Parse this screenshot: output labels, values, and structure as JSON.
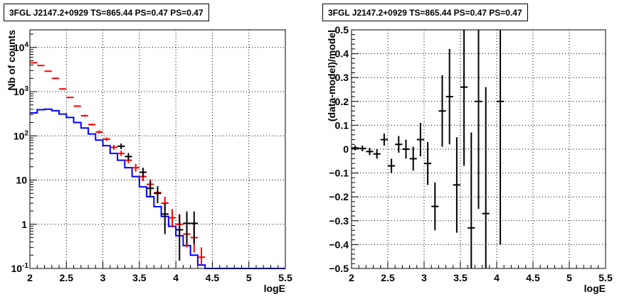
{
  "chart_data": [
    {
      "type": "histogram",
      "title": "3FGL J2147.2+0929 TS=865.44 PS=0.47 PS=0.47",
      "xlabel": "logE",
      "ylabel": "Nb of counts",
      "xlim": [
        2,
        5.5
      ],
      "ylim": [
        0.1,
        25000
      ],
      "yscale": "log",
      "grid": true,
      "xticks": [
        "2",
        "2.5",
        "3",
        "3.5",
        "4",
        "4.5",
        "5",
        "5.5"
      ],
      "yticks": [
        {
          "v": 0.1,
          "label": "10",
          "exp": "-1"
        },
        {
          "v": 1,
          "label": "1",
          "exp": ""
        },
        {
          "v": 10,
          "label": "10",
          "exp": ""
        },
        {
          "v": 100,
          "label": "10",
          "exp": "2"
        },
        {
          "v": 1000,
          "label": "10",
          "exp": "3"
        },
        {
          "v": 10000,
          "label": "10",
          "exp": "4"
        }
      ],
      "bin_edges": [
        2.0,
        2.1,
        2.2,
        2.3,
        2.4,
        2.5,
        2.6,
        2.7,
        2.8,
        2.9,
        3.0,
        3.1,
        3.2,
        3.3,
        3.4,
        3.5,
        3.6,
        3.7,
        3.8,
        3.9,
        4.0,
        4.1,
        4.2,
        4.3,
        4.4,
        4.5,
        4.6,
        4.7,
        4.8,
        4.9,
        5.0,
        5.1,
        5.2,
        5.3,
        5.4,
        5.5
      ],
      "series": [
        {
          "kind": "step",
          "color": "#0000ff",
          "values": [
            330,
            390,
            400,
            370,
            310,
            260,
            200,
            150,
            110,
            80,
            60,
            40,
            28,
            19,
            12,
            7,
            4.2,
            2.5,
            1.5,
            0.9,
            0.55,
            0.33,
            0.2,
            0.12,
            0.1,
            0.1,
            0.1,
            0.1,
            0.1,
            0.1,
            0.1,
            0.1,
            0.1,
            0.1,
            0.1
          ]
        },
        {
          "kind": "points",
          "color": "#ff0000",
          "x": [
            2.05,
            2.15,
            2.25,
            2.35,
            2.45,
            2.55,
            2.65,
            2.75,
            2.85,
            2.95,
            3.05,
            3.15,
            3.25,
            3.35,
            3.45,
            3.55,
            3.65,
            3.75,
            3.85,
            3.95,
            4.05,
            4.15,
            4.25,
            4.35
          ],
          "y": [
            4500,
            3900,
            2900,
            2000,
            1150,
            740,
            470,
            285,
            180,
            122,
            84,
            55,
            40,
            28,
            19,
            12,
            8,
            5.2,
            3,
            1.4,
            1.0,
            0.6,
            0.5,
            0.18
          ],
          "yerr_low": [
            4400,
            3800,
            2820,
            1940,
            1110,
            715,
            455,
            272,
            170,
            112,
            77,
            49,
            35,
            24,
            15.5,
            9.5,
            6.2,
            3.8,
            2.1,
            0.85,
            0.55,
            0.3,
            0.23,
            0.12
          ],
          "yerr_high": [
            4600,
            4000,
            2980,
            2060,
            1190,
            765,
            490,
            300,
            190,
            133,
            92,
            62,
            46,
            33,
            23,
            15,
            10.5,
            7,
            4.2,
            2.2,
            1.7,
            1.1,
            1.0,
            0.3
          ]
        },
        {
          "kind": "points",
          "color": "#000000",
          "x": [
            3.25,
            3.35,
            3.55,
            3.65,
            3.75,
            3.85,
            4.05,
            4.15,
            4.25
          ],
          "y": [
            58,
            34,
            15,
            6.5,
            5.0,
            1.7,
            0.75,
            1.05,
            1.05
          ],
          "yerr_low": [
            50,
            28,
            11.5,
            4.2,
            3.0,
            0.6,
            0.15,
            0.35,
            0.35
          ],
          "yerr_high": [
            67,
            41,
            19,
            9.5,
            7.3,
            3.0,
            1.65,
            1.95,
            1.95
          ]
        }
      ]
    },
    {
      "type": "scatter",
      "title": "3FGL J2147.2+0929 TS=865.44 PS=0.47 PS=0.47",
      "xlabel": "logE",
      "ylabel": "(data-model)/model",
      "xlim": [
        2,
        5.5
      ],
      "ylim": [
        -0.5,
        0.5
      ],
      "grid": true,
      "xticks": [
        "2",
        "2.5",
        "3",
        "3.5",
        "4",
        "4.5",
        "5",
        "5.5"
      ],
      "yticks": [
        "-0.5",
        "-0.4",
        "-0.3",
        "-0.2",
        "-0.1",
        "0",
        "0.1",
        "0.2",
        "0.3",
        "0.4",
        "0.5"
      ],
      "series": [
        {
          "color": "#000000",
          "x": [
            2.05,
            2.15,
            2.25,
            2.35,
            2.45,
            2.55,
            2.65,
            2.75,
            2.85,
            2.95,
            3.05,
            3.15,
            3.25,
            3.35,
            3.45,
            3.55,
            3.65,
            3.75,
            3.85,
            4.05
          ],
          "y": [
            0.005,
            0.003,
            -0.01,
            -0.02,
            0.04,
            -0.07,
            0.02,
            0.0,
            -0.04,
            0.04,
            -0.06,
            -0.24,
            0.16,
            0.22,
            -0.15,
            0.26,
            -0.33,
            0.2,
            -0.27,
            0.2
          ],
          "err": [
            0.01,
            0.012,
            0.015,
            0.02,
            0.025,
            0.03,
            0.035,
            0.04,
            0.05,
            0.07,
            0.09,
            0.1,
            0.15,
            0.2,
            0.2,
            0.33,
            0.4,
            0.45,
            0.53,
            0.6
          ]
        }
      ]
    }
  ]
}
